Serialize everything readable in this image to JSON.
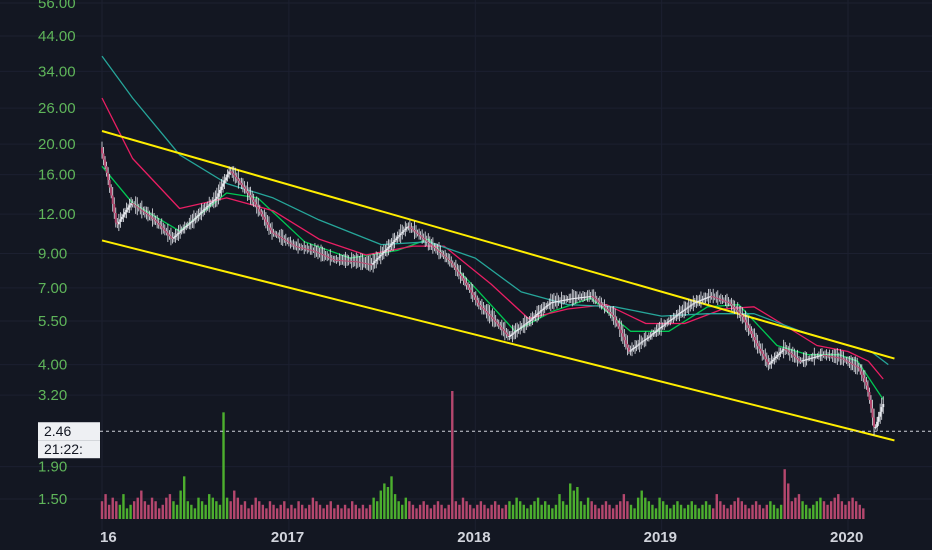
{
  "chart_data": {
    "type": "candlestick",
    "y_scale": "log",
    "y_ticks": [
      "56.00",
      "44.00",
      "34.00",
      "26.00",
      "20.00",
      "16.00",
      "12.00",
      "9.00",
      "7.00",
      "5.50",
      "4.00",
      "3.20",
      "2.46",
      "1.90",
      "1.50"
    ],
    "y_tick_values": [
      56,
      44,
      34,
      26,
      20,
      16,
      12,
      9,
      7,
      5.5,
      4,
      3.2,
      2.46,
      1.9,
      1.5
    ],
    "x_ticks": [
      "16",
      "2017",
      "2018",
      "2019",
      "2020"
    ],
    "x_tick_dates": [
      "2016-01-01",
      "2017-01-01",
      "2018-01-01",
      "2019-01-01",
      "2020-01-01"
    ],
    "last_price_label": "2.46",
    "last_price": 2.46,
    "countdown_label": "21:22:",
    "price_path": [
      [
        "2016-01-01",
        19.5
      ],
      [
        "2016-02-01",
        11.0
      ],
      [
        "2016-03-01",
        13.0
      ],
      [
        "2016-04-15",
        11.5
      ],
      [
        "2016-05-20",
        10.0
      ],
      [
        "2016-07-01",
        11.5
      ],
      [
        "2016-08-15",
        13.5
      ],
      [
        "2016-09-10",
        16.5
      ],
      [
        "2016-10-15",
        14.0
      ],
      [
        "2016-12-01",
        10.5
      ],
      [
        "2017-01-15",
        9.5
      ],
      [
        "2017-02-20",
        9.2
      ],
      [
        "2017-04-01",
        8.6
      ],
      [
        "2017-05-15",
        8.5
      ],
      [
        "2017-06-15",
        8.3
      ],
      [
        "2017-07-20",
        9.5
      ],
      [
        "2017-08-25",
        11.0
      ],
      [
        "2017-10-01",
        9.8
      ],
      [
        "2017-11-15",
        8.5
      ],
      [
        "2018-01-10",
        6.2
      ],
      [
        "2018-02-20",
        5.3
      ],
      [
        "2018-03-10",
        4.9
      ],
      [
        "2018-04-20",
        5.5
      ],
      [
        "2018-06-01",
        6.3
      ],
      [
        "2018-07-15",
        6.5
      ],
      [
        "2018-08-20",
        6.6
      ],
      [
        "2018-10-01",
        5.7
      ],
      [
        "2018-11-01",
        4.4
      ],
      [
        "2018-12-10",
        4.9
      ],
      [
        "2019-01-25",
        5.6
      ],
      [
        "2019-03-10",
        6.3
      ],
      [
        "2019-04-10",
        6.6
      ],
      [
        "2019-05-15",
        6.3
      ],
      [
        "2019-06-10",
        5.7
      ],
      [
        "2019-07-10",
        4.6
      ],
      [
        "2019-08-01",
        4.0
      ],
      [
        "2019-09-01",
        4.5
      ],
      [
        "2019-10-01",
        4.1
      ],
      [
        "2019-11-15",
        4.3
      ],
      [
        "2019-12-20",
        4.2
      ],
      [
        "2020-01-25",
        3.9
      ],
      [
        "2020-02-10",
        3.4
      ],
      [
        "2020-02-25",
        2.47
      ],
      [
        "2020-03-12",
        3.0
      ]
    ],
    "moving_averages": [
      {
        "color": "#00c853",
        "path": [
          [
            "2016-01-01",
            17.0
          ],
          [
            "2016-03-01",
            13.0
          ],
          [
            "2016-06-01",
            10.6
          ],
          [
            "2016-09-01",
            14.0
          ],
          [
            "2016-11-01",
            13.5
          ],
          [
            "2017-02-01",
            9.8
          ],
          [
            "2017-05-01",
            8.7
          ],
          [
            "2017-08-01",
            9.2
          ],
          [
            "2017-10-01",
            10.0
          ],
          [
            "2018-01-01",
            7.0
          ],
          [
            "2018-03-20",
            5.1
          ],
          [
            "2018-06-01",
            5.9
          ],
          [
            "2018-08-15",
            6.5
          ],
          [
            "2018-11-01",
            5.1
          ],
          [
            "2019-01-15",
            5.1
          ],
          [
            "2019-04-01",
            6.1
          ],
          [
            "2019-06-01",
            6.2
          ],
          [
            "2019-08-15",
            4.6
          ],
          [
            "2019-10-15",
            4.3
          ],
          [
            "2019-12-15",
            4.3
          ],
          [
            "2020-01-20",
            4.1
          ],
          [
            "2020-03-10",
            3.1
          ]
        ]
      },
      {
        "color": "#e91e63",
        "path": [
          [
            "2016-01-01",
            28.0
          ],
          [
            "2016-03-01",
            18.0
          ],
          [
            "2016-06-01",
            12.5
          ],
          [
            "2016-09-01",
            13.5
          ],
          [
            "2016-12-01",
            12.3
          ],
          [
            "2017-03-01",
            10.0
          ],
          [
            "2017-06-01",
            8.9
          ],
          [
            "2017-09-01",
            9.5
          ],
          [
            "2017-11-01",
            9.5
          ],
          [
            "2018-02-01",
            7.2
          ],
          [
            "2018-04-15",
            5.6
          ],
          [
            "2018-07-01",
            6.0
          ],
          [
            "2018-09-15",
            6.2
          ],
          [
            "2018-12-01",
            5.4
          ],
          [
            "2019-02-15",
            5.4
          ],
          [
            "2019-05-01",
            6.0
          ],
          [
            "2019-07-01",
            6.1
          ],
          [
            "2019-09-01",
            5.3
          ],
          [
            "2019-11-01",
            4.6
          ],
          [
            "2020-01-01",
            4.4
          ],
          [
            "2020-02-10",
            4.1
          ],
          [
            "2020-03-10",
            3.6
          ]
        ]
      },
      {
        "color": "#26a69a",
        "path": [
          [
            "2016-01-01",
            38.0
          ],
          [
            "2016-03-01",
            28.0
          ],
          [
            "2016-06-01",
            18.5
          ],
          [
            "2016-09-01",
            15.0
          ],
          [
            "2016-12-01",
            13.5
          ],
          [
            "2017-03-01",
            11.5
          ],
          [
            "2017-07-01",
            9.6
          ],
          [
            "2017-10-01",
            9.8
          ],
          [
            "2018-01-01",
            8.7
          ],
          [
            "2018-04-01",
            6.8
          ],
          [
            "2018-07-01",
            6.2
          ],
          [
            "2018-10-01",
            6.1
          ],
          [
            "2019-01-01",
            5.7
          ],
          [
            "2019-04-01",
            5.8
          ],
          [
            "2019-07-01",
            5.8
          ],
          [
            "2019-10-01",
            5.1
          ],
          [
            "2020-01-01",
            4.6
          ],
          [
            "2020-02-15",
            4.4
          ],
          [
            "2020-03-20",
            4.0
          ]
        ]
      }
    ],
    "channel_lines": [
      {
        "color": "#ffee00",
        "from": [
          "2016-01-01",
          22.0
        ],
        "to": [
          "2020-04-01",
          4.18
        ]
      },
      {
        "color": "#ffee00",
        "from": [
          "2016-01-01",
          9.9
        ],
        "to": [
          "2020-04-01",
          2.3
        ]
      }
    ],
    "volume_bars": {
      "start": "2016-01-01",
      "interval_days": 7,
      "values": [
        5,
        7,
        4,
        6,
        5,
        4,
        7,
        3,
        4,
        5,
        6,
        8,
        5,
        4,
        6,
        5,
        3,
        4,
        6,
        7,
        5,
        4,
        8,
        12,
        5,
        4,
        3,
        6,
        5,
        4,
        7,
        6,
        5,
        4,
        30,
        6,
        5,
        8,
        6,
        4,
        5,
        3,
        4,
        6,
        5,
        4,
        3,
        5,
        4,
        3,
        4,
        5,
        3,
        4,
        3,
        5,
        4,
        3,
        4,
        6,
        5,
        4,
        3,
        4,
        5,
        3,
        4,
        3,
        4,
        3,
        5,
        4,
        3,
        4,
        3,
        4,
        6,
        5,
        8,
        10,
        9,
        12,
        7,
        5,
        4,
        6,
        5,
        4,
        3,
        4,
        5,
        4,
        3,
        4,
        5,
        4,
        3,
        4,
        36,
        5,
        4,
        6,
        5,
        4,
        3,
        4,
        5,
        4,
        3,
        4,
        5,
        4,
        3,
        4,
        5,
        4,
        6,
        5,
        4,
        3,
        4,
        5,
        6,
        4,
        5,
        4,
        3,
        4,
        7,
        5,
        4,
        10,
        8,
        9,
        5,
        4,
        6,
        5,
        4,
        3,
        4,
        5,
        4,
        3,
        4,
        5,
        7,
        5,
        4,
        3,
        6,
        8,
        6,
        5,
        4,
        3,
        6,
        5,
        4,
        3,
        4,
        5,
        4,
        3,
        4,
        5,
        4,
        3,
        4,
        5,
        4,
        3,
        7,
        5,
        4,
        3,
        4,
        5,
        6,
        5,
        4,
        3,
        4,
        5,
        4,
        3,
        4,
        5,
        4,
        3,
        4,
        14,
        10,
        5,
        6,
        7,
        5,
        4,
        3,
        4,
        5,
        6,
        5,
        4,
        5,
        6,
        7,
        5,
        4,
        5,
        6,
        5,
        4,
        3
      ]
    }
  }
}
